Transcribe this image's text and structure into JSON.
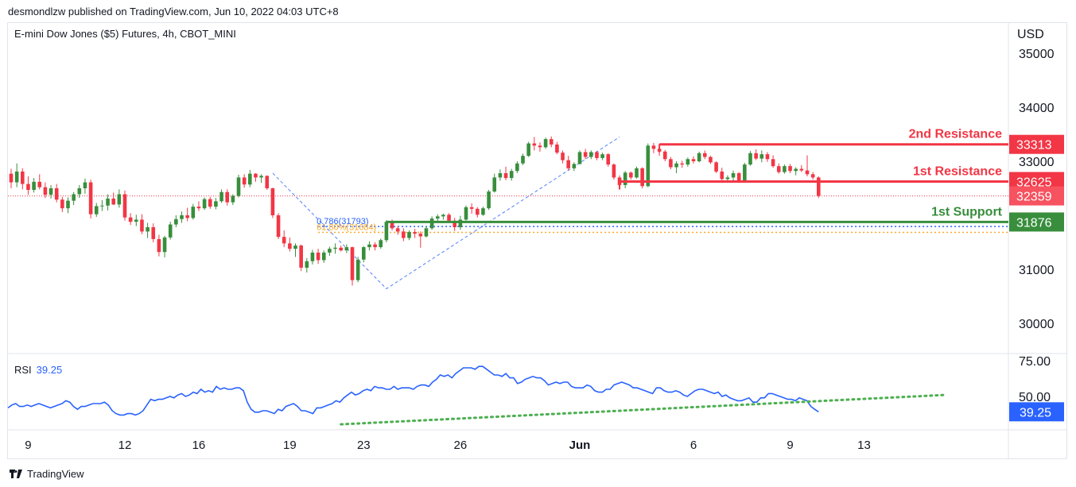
{
  "header": {
    "published": "desmondlzw published on TradingView.com, Jun 10, 2022 04:03 UTC+8"
  },
  "footer": {
    "brand": "TradingView"
  },
  "chart_data": {
    "type": "candlestick",
    "symbol": "E-mini Dow Jones ($5) Futures, 4h, CBOT_MINI",
    "currency": "USD",
    "price_axis": {
      "ticks": [
        35000,
        34000,
        33000,
        31000,
        30000
      ],
      "range": [
        29500,
        35500
      ]
    },
    "x_ticks": [
      "9",
      "12",
      "16",
      "19",
      "23",
      "26",
      "Jun",
      "6",
      "9",
      "13"
    ],
    "x_tick_slots": [
      3,
      20,
      33,
      49,
      62,
      79,
      100,
      120,
      137,
      150
    ],
    "last_price": 32359,
    "levels": [
      {
        "name": "2nd Resistance",
        "value": 33313,
        "color": "#f23645",
        "from_slot": 114
      },
      {
        "name": "1st Resistance",
        "value": 32625,
        "color": "#f23645",
        "from_slot": 107
      },
      {
        "name": "1st Support",
        "value": 31876,
        "color": "#388e3c",
        "from_slot": 66
      }
    ],
    "fib": [
      {
        "label": "0.786(31793)",
        "value": 31793,
        "color": "#2962ff"
      },
      {
        "label": "61.80%(31684)",
        "value": 31684,
        "color": "#f9a825"
      }
    ],
    "candles": [
      [
        32770,
        32860,
        32500,
        32610
      ],
      [
        32610,
        32960,
        32520,
        32810
      ],
      [
        32810,
        32870,
        32480,
        32580
      ],
      [
        32580,
        32720,
        32380,
        32470
      ],
      [
        32470,
        32690,
        32420,
        32620
      ],
      [
        32620,
        32760,
        32480,
        32520
      ],
      [
        32520,
        32610,
        32320,
        32380
      ],
      [
        32380,
        32560,
        32310,
        32500
      ],
      [
        32500,
        32580,
        32240,
        32290
      ],
      [
        32290,
        32340,
        32060,
        32130
      ],
      [
        32130,
        32330,
        32040,
        32270
      ],
      [
        32270,
        32430,
        32190,
        32390
      ],
      [
        32390,
        32560,
        32320,
        32500
      ],
      [
        32500,
        32680,
        32400,
        32610
      ],
      [
        32610,
        32660,
        31940,
        32020
      ],
      [
        32020,
        32230,
        31970,
        32170
      ],
      [
        32170,
        32280,
        32080,
        32180
      ],
      [
        32180,
        32390,
        32090,
        32310
      ],
      [
        32310,
        32420,
        32190,
        32200
      ],
      [
        32200,
        32480,
        32140,
        32390
      ],
      [
        32390,
        32460,
        31900,
        31960
      ],
      [
        31960,
        32040,
        31820,
        31880
      ],
      [
        31880,
        32010,
        31800,
        31920
      ],
      [
        31920,
        32020,
        31650,
        31700
      ],
      [
        31700,
        31860,
        31580,
        31780
      ],
      [
        31780,
        31850,
        31500,
        31560
      ],
      [
        31560,
        31640,
        31240,
        31320
      ],
      [
        31320,
        31620,
        31220,
        31590
      ],
      [
        31590,
        31880,
        31550,
        31830
      ],
      [
        31830,
        32000,
        31780,
        31930
      ],
      [
        31930,
        32070,
        31860,
        32000
      ],
      [
        32000,
        32140,
        31890,
        31950
      ],
      [
        31950,
        32210,
        31920,
        32160
      ],
      [
        32160,
        32260,
        32080,
        32130
      ],
      [
        32130,
        32330,
        32100,
        32300
      ],
      [
        32300,
        32340,
        32120,
        32160
      ],
      [
        32160,
        32320,
        32110,
        32260
      ],
      [
        32260,
        32480,
        32230,
        32430
      ],
      [
        32430,
        32480,
        32180,
        32240
      ],
      [
        32240,
        32390,
        32190,
        32360
      ],
      [
        32360,
        32750,
        32330,
        32700
      ],
      [
        32700,
        32760,
        32510,
        32570
      ],
      [
        32570,
        32840,
        32520,
        32770
      ],
      [
        32770,
        32780,
        32620,
        32700
      ],
      [
        32700,
        32760,
        32600,
        32730
      ],
      [
        32730,
        32740,
        32470,
        32500
      ],
      [
        32500,
        32510,
        31950,
        32000
      ],
      [
        32000,
        32040,
        31560,
        31600
      ],
      [
        31600,
        31720,
        31410,
        31480
      ],
      [
        31480,
        31590,
        31330,
        31380
      ],
      [
        31380,
        31480,
        31230,
        31440
      ],
      [
        31440,
        31460,
        30970,
        31030
      ],
      [
        31030,
        31210,
        30940,
        31150
      ],
      [
        31150,
        31360,
        31090,
        31310
      ],
      [
        31310,
        31380,
        31100,
        31170
      ],
      [
        31170,
        31350,
        31120,
        31310
      ],
      [
        31310,
        31420,
        31250,
        31380
      ],
      [
        31380,
        31480,
        31290,
        31400
      ],
      [
        31400,
        31440,
        31330,
        31350
      ],
      [
        31350,
        31460,
        31300,
        31410
      ],
      [
        31410,
        31420,
        30700,
        30800
      ],
      [
        30800,
        31230,
        30760,
        31180
      ],
      [
        31180,
        31430,
        31130,
        31410
      ],
      [
        31410,
        31520,
        31350,
        31460
      ],
      [
        31460,
        31500,
        31350,
        31410
      ],
      [
        31410,
        31570,
        31380,
        31540
      ],
      [
        31540,
        31910,
        31500,
        31880
      ],
      [
        31880,
        31920,
        31720,
        31760
      ],
      [
        31760,
        31800,
        31640,
        31700
      ],
      [
        31700,
        31760,
        31520,
        31580
      ],
      [
        31580,
        31720,
        31540,
        31690
      ],
      [
        31690,
        31750,
        31580,
        31660
      ],
      [
        31660,
        31700,
        31400,
        31610
      ],
      [
        31610,
        31800,
        31590,
        31760
      ],
      [
        31760,
        31980,
        31730,
        31940
      ],
      [
        31940,
        32020,
        31880,
        31980
      ],
      [
        31980,
        32030,
        31920,
        32010
      ],
      [
        32010,
        32040,
        31880,
        31900
      ],
      [
        31900,
        31950,
        31710,
        31780
      ],
      [
        31780,
        31990,
        31730,
        31920
      ],
      [
        31920,
        32180,
        31900,
        32150
      ],
      [
        32150,
        32220,
        32030,
        32120
      ],
      [
        32120,
        32150,
        31960,
        32010
      ],
      [
        32010,
        32160,
        31990,
        32130
      ],
      [
        32130,
        32470,
        32100,
        32440
      ],
      [
        32440,
        32770,
        32420,
        32700
      ],
      [
        32700,
        32850,
        32640,
        32780
      ],
      [
        32780,
        32900,
        32650,
        32690
      ],
      [
        32690,
        32860,
        32640,
        32820
      ],
      [
        32820,
        33000,
        32780,
        32960
      ],
      [
        32960,
        33140,
        32930,
        33100
      ],
      [
        33100,
        33360,
        33080,
        33330
      ],
      [
        33330,
        33450,
        33200,
        33290
      ],
      [
        33290,
        33350,
        33180,
        33260
      ],
      [
        33260,
        33440,
        33230,
        33410
      ],
      [
        33410,
        33460,
        33260,
        33310
      ],
      [
        33310,
        33360,
        33130,
        33160
      ],
      [
        33160,
        33200,
        32960,
        33020
      ],
      [
        33020,
        33100,
        32830,
        32870
      ],
      [
        32870,
        32980,
        32820,
        32950
      ],
      [
        32950,
        33200,
        32940,
        33170
      ],
      [
        33170,
        33230,
        33040,
        33080
      ],
      [
        33080,
        33200,
        33040,
        33170
      ],
      [
        33170,
        33190,
        33020,
        33060
      ],
      [
        33060,
        33160,
        33020,
        33130
      ],
      [
        33130,
        33150,
        32900,
        32940
      ],
      [
        32940,
        32960,
        32660,
        32700
      ],
      [
        32700,
        32740,
        32520,
        32560
      ],
      [
        32560,
        32820,
        32500,
        32790
      ],
      [
        32790,
        32810,
        32660,
        32700
      ],
      [
        32700,
        32900,
        32680,
        32870
      ],
      [
        32870,
        32890,
        32500,
        32540
      ],
      [
        32540,
        33330,
        32520,
        33290
      ],
      [
        33290,
        33340,
        33150,
        33230
      ],
      [
        33230,
        33320,
        33100,
        33180
      ],
      [
        33180,
        33210,
        33000,
        33040
      ],
      [
        33040,
        33080,
        32850,
        32890
      ],
      [
        32890,
        33000,
        32780,
        32960
      ],
      [
        32960,
        33010,
        32880,
        32940
      ],
      [
        32940,
        33070,
        32900,
        33040
      ],
      [
        33040,
        33090,
        32960,
        33000
      ],
      [
        33000,
        33180,
        32980,
        33150
      ],
      [
        33150,
        33200,
        33040,
        33080
      ],
      [
        33080,
        33100,
        32950,
        32980
      ],
      [
        32980,
        33000,
        32780,
        32810
      ],
      [
        32810,
        32880,
        32620,
        32670
      ],
      [
        32670,
        32740,
        32600,
        32700
      ],
      [
        32700,
        32830,
        32640,
        32780
      ],
      [
        32780,
        32800,
        32600,
        32640
      ],
      [
        32640,
        32970,
        32620,
        32940
      ],
      [
        32940,
        33190,
        32920,
        33150
      ],
      [
        33150,
        33220,
        33020,
        33050
      ],
      [
        33050,
        33200,
        32980,
        33130
      ],
      [
        33130,
        33170,
        32990,
        33040
      ],
      [
        33040,
        33110,
        32880,
        32910
      ],
      [
        32910,
        32960,
        32770,
        32800
      ],
      [
        32800,
        32940,
        32770,
        32910
      ],
      [
        32910,
        32950,
        32780,
        32820
      ],
      [
        32820,
        32890,
        32740,
        32860
      ],
      [
        32860,
        32930,
        32800,
        32830
      ],
      [
        32830,
        33110,
        32720,
        32760
      ],
      [
        32760,
        32800,
        32660,
        32700
      ],
      [
        32700,
        32720,
        32320,
        32359
      ]
    ],
    "rsi": {
      "label": "RSI",
      "value": 39.25,
      "axis_ticks": [
        75.0,
        50.0
      ],
      "range": [
        30,
        80
      ],
      "values": [
        42,
        44,
        45,
        43,
        43,
        44,
        43,
        44,
        45,
        44,
        43,
        42,
        43,
        44,
        45,
        47,
        46,
        43,
        41,
        43,
        43,
        44,
        45,
        45,
        45,
        46,
        44,
        40,
        38,
        37,
        37,
        38,
        38,
        37,
        38,
        40,
        44,
        48,
        47,
        48,
        48,
        49,
        50,
        49,
        51,
        52,
        50,
        51,
        53,
        52,
        55,
        53,
        54,
        53,
        57,
        55,
        56,
        55,
        55,
        56,
        56,
        54,
        46,
        41,
        39,
        39,
        40,
        40,
        39,
        38,
        41,
        40,
        43,
        44,
        45,
        43,
        40,
        40,
        39,
        38,
        42,
        42,
        43,
        44,
        45,
        47,
        46,
        49,
        51,
        53,
        51,
        52,
        54,
        55,
        54,
        57,
        56,
        56,
        55,
        55,
        57,
        55,
        56,
        56,
        56,
        55,
        57,
        58,
        58,
        57,
        60,
        62,
        65,
        64,
        65,
        63,
        66,
        68,
        70,
        70,
        70,
        69,
        71,
        71,
        69,
        67,
        65,
        65,
        64,
        66,
        63,
        63,
        59,
        60,
        62,
        63,
        64,
        63,
        63,
        61,
        58,
        59,
        60,
        59,
        60,
        60,
        57,
        56,
        56,
        56,
        58,
        57,
        54,
        53,
        53,
        55,
        55,
        58,
        59,
        60,
        59,
        58,
        56,
        56,
        55,
        54,
        53,
        52,
        56,
        56,
        54,
        53,
        53,
        54,
        53,
        51,
        50,
        52,
        54,
        55,
        55,
        54,
        53,
        52,
        53,
        50,
        51,
        49,
        48,
        47,
        47,
        48,
        49,
        46,
        46,
        49,
        49,
        52,
        52,
        51,
        50,
        49,
        48,
        48,
        47,
        49,
        48,
        47,
        43,
        41,
        39.25
      ]
    }
  }
}
